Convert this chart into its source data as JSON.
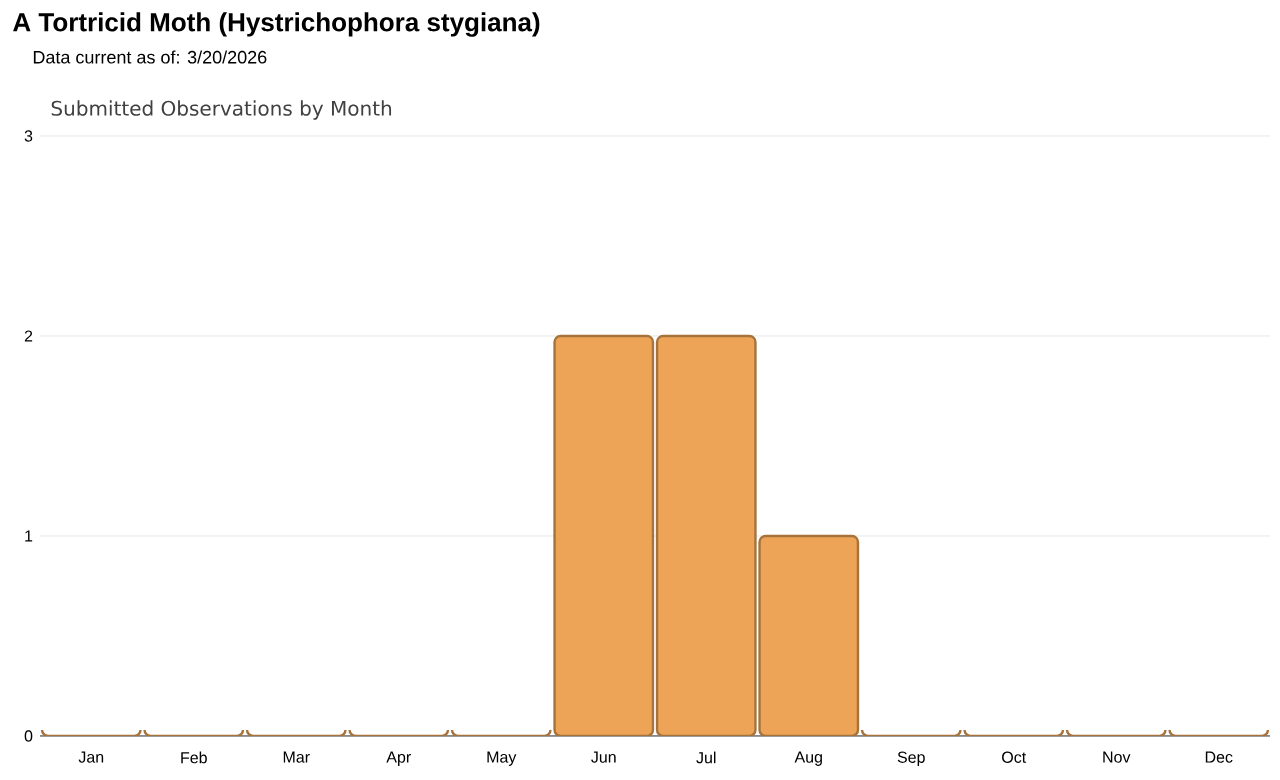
{
  "chart_data": {
    "type": "bar",
    "title": "A Tortricid Moth   (Hystrichophora stygiana)",
    "subtitle": "Data current as of: 3/20/2026",
    "annotations": [
      "Submitted Observations by Month"
    ],
    "categories": [
      "Jan",
      "Feb",
      "Mar",
      "Apr",
      "May",
      "Jun",
      "Jul",
      "Aug",
      "Sep",
      "Oct",
      "Nov",
      "Dec"
    ],
    "values": [
      0,
      0,
      0,
      0,
      0,
      2,
      2,
      1,
      0,
      0,
      0,
      0
    ],
    "color": "#eda456",
    "ylim": [
      0,
      3
    ],
    "yticks": [
      0,
      1,
      2,
      3
    ],
    "grid": "y"
  }
}
